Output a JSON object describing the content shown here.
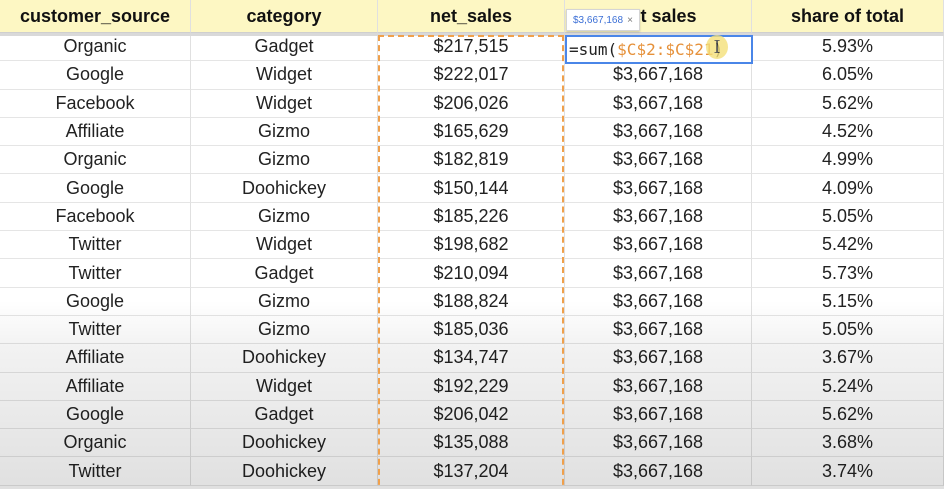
{
  "headers": [
    "customer_source",
    "category",
    "net_sales",
    "net sales",
    "share of total"
  ],
  "rows": [
    [
      "Organic",
      "Gadget",
      "$217,515",
      "",
      "5.93%"
    ],
    [
      "Google",
      "Widget",
      "$222,017",
      "$3,667,168",
      "6.05%"
    ],
    [
      "Facebook",
      "Widget",
      "$206,026",
      "$3,667,168",
      "5.62%"
    ],
    [
      "Affiliate",
      "Gizmo",
      "$165,629",
      "$3,667,168",
      "4.52%"
    ],
    [
      "Organic",
      "Gizmo",
      "$182,819",
      "$3,667,168",
      "4.99%"
    ],
    [
      "Google",
      "Doohickey",
      "$150,144",
      "$3,667,168",
      "4.09%"
    ],
    [
      "Facebook",
      "Gizmo",
      "$185,226",
      "$3,667,168",
      "5.05%"
    ],
    [
      "Twitter",
      "Widget",
      "$198,682",
      "$3,667,168",
      "5.42%"
    ],
    [
      "Twitter",
      "Gadget",
      "$210,094",
      "$3,667,168",
      "5.73%"
    ],
    [
      "Google",
      "Gizmo",
      "$188,824",
      "$3,667,168",
      "5.15%"
    ],
    [
      "Twitter",
      "Gizmo",
      "$185,036",
      "$3,667,168",
      "5.05%"
    ],
    [
      "Affiliate",
      "Doohickey",
      "$134,747",
      "$3,667,168",
      "3.67%"
    ],
    [
      "Affiliate",
      "Widget",
      "$192,229",
      "$3,667,168",
      "5.24%"
    ],
    [
      "Google",
      "Gadget",
      "$206,042",
      "$3,667,168",
      "5.62%"
    ],
    [
      "Organic",
      "Doohickey",
      "$135,088",
      "$3,667,168",
      "3.68%"
    ],
    [
      "Twitter",
      "Doohickey",
      "$137,204",
      "$3,667,168",
      "3.74%"
    ]
  ],
  "editor": {
    "prefix": "=sum(",
    "range": "$C$2:$C$21",
    "suffix": ")"
  },
  "tooltip": {
    "value": "$3,667,168",
    "close": "×"
  },
  "cursor_icon": "text-cursor-icon"
}
